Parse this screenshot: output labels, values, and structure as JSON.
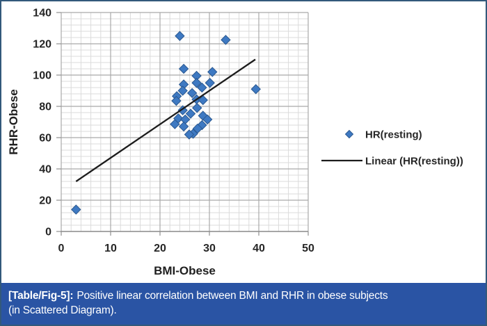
{
  "caption": {
    "label": "[Table/Fig-5]:",
    "text": "Positive linear correlation between BMI and RHR in obese subjects",
    "text2": "(in Scattered Diagram).",
    "bg": "#2A54A4",
    "fg": "#FFFFFF"
  },
  "frame": {
    "border_color": "#33597B",
    "background": "#FFFFFF"
  },
  "chart_data": {
    "type": "scatter",
    "title": "",
    "xlabel": "BMI-Obese",
    "ylabel": "RHR-Obese",
    "xlim": [
      0,
      50
    ],
    "ylim": [
      0,
      140
    ],
    "xticks": [
      0,
      10,
      20,
      30,
      40,
      50
    ],
    "yticks": [
      0,
      20,
      40,
      60,
      80,
      100,
      120,
      140
    ],
    "x_minor_step": 2,
    "y_minor_step": 4,
    "grid": true,
    "legend_position": "right",
    "legend": [
      {
        "label": "HR(resting)",
        "type": "marker"
      },
      {
        "label": "Linear (HR(resting))",
        "type": "line"
      }
    ],
    "series": [
      {
        "name": "HR(resting)",
        "type": "scatter",
        "points": [
          [
            3,
            14
          ],
          [
            24,
            125
          ],
          [
            33.3,
            122.5
          ],
          [
            24.8,
            104
          ],
          [
            30.6,
            102
          ],
          [
            27.4,
            99.5
          ],
          [
            27.4,
            95
          ],
          [
            30.1,
            95
          ],
          [
            24.8,
            94
          ],
          [
            28.5,
            92
          ],
          [
            39.4,
            91
          ],
          [
            24.6,
            90
          ],
          [
            26.5,
            88.5
          ],
          [
            23.4,
            86.5
          ],
          [
            27.4,
            84.5
          ],
          [
            28.7,
            84
          ],
          [
            23.3,
            83.5
          ],
          [
            27.5,
            79
          ],
          [
            24.6,
            77.5
          ],
          [
            26.2,
            75.3
          ],
          [
            28.7,
            74
          ],
          [
            23.7,
            72.3
          ],
          [
            25.1,
            71.6
          ],
          [
            29.6,
            71.6
          ],
          [
            23,
            68.6
          ],
          [
            28.5,
            68
          ],
          [
            24.8,
            67.1
          ],
          [
            27.6,
            65.8
          ],
          [
            26.7,
            62.5
          ],
          [
            25.9,
            62
          ]
        ]
      },
      {
        "name": "Linear (HR(resting))",
        "type": "line",
        "points": [
          [
            3,
            32
          ],
          [
            39.3,
            110
          ]
        ]
      }
    ],
    "colors": {
      "marker": "#3E79C2",
      "marker_edge": "#2B5991",
      "trendline": "#1C1C1C",
      "grid_minor": "#DBDBDB",
      "grid_major": "#A9A9A9",
      "axis": "#8F8F8F",
      "tick_label": "#262626"
    }
  }
}
